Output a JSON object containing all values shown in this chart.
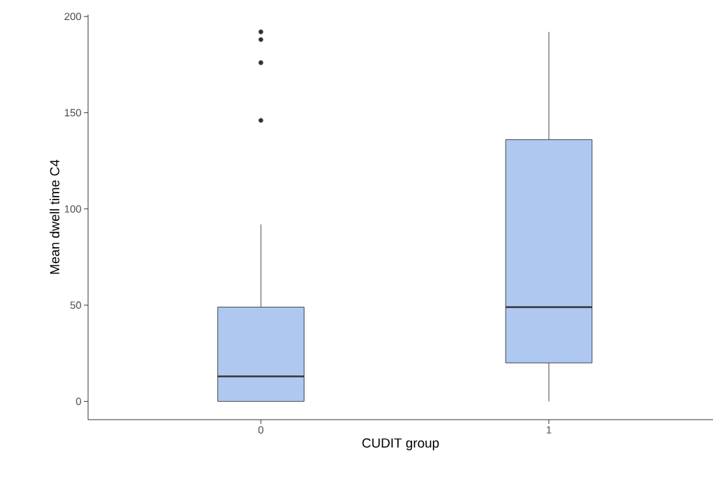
{
  "chart_data": {
    "type": "box",
    "xlabel": "CUDIT group",
    "ylabel": "Mean dwell time C4",
    "categories": [
      "0",
      "1"
    ],
    "color": "#aec8f0",
    "boxes": [
      {
        "low": 0,
        "q1": 0,
        "median": 13,
        "q3": 49,
        "high": 92,
        "outliers": [
          146,
          176,
          188,
          192
        ]
      },
      {
        "low": 0,
        "q1": 20,
        "median": 49,
        "q3": 136,
        "high": 192
      }
    ],
    "ylim": [
      -9.5,
      201
    ],
    "yticks": [
      0,
      50,
      100,
      150,
      200
    ]
  }
}
